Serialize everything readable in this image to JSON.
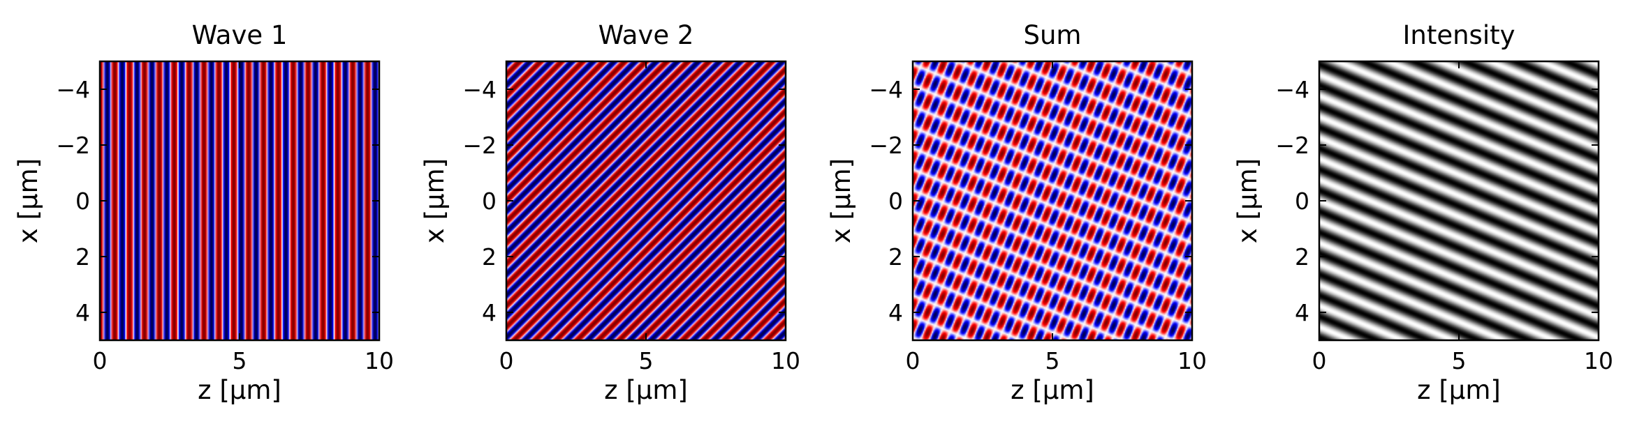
{
  "chart_data": [
    {
      "type": "heatmap",
      "title": "Wave 1",
      "xlabel": "z [μm]",
      "ylabel": "x [μm]",
      "xlim": [
        0,
        10
      ],
      "ylim": [
        -5,
        5
      ],
      "y_inverted": true,
      "xticks": [
        "0",
        "5",
        "10"
      ],
      "yticks": [
        "−4",
        "−2",
        "0",
        "2",
        "4"
      ],
      "colormap": "seismic",
      "pattern": {
        "kind": "wave",
        "kz": 11.8,
        "kx": 0,
        "stripe_period_um": 0.53
      }
    },
    {
      "type": "heatmap",
      "title": "Wave 2",
      "xlabel": "z [μm]",
      "ylabel": "x [μm]",
      "xlim": [
        0,
        10
      ],
      "ylim": [
        -5,
        5
      ],
      "y_inverted": true,
      "xticks": [
        "0",
        "5",
        "10"
      ],
      "yticks": [
        "−4",
        "−2",
        "0",
        "2",
        "4"
      ],
      "colormap": "seismic",
      "pattern": {
        "kind": "wave",
        "kz": 8.34,
        "kx": 8.34,
        "stripe_period_um": 0.53
      }
    },
    {
      "type": "heatmap",
      "title": "Sum",
      "xlabel": "z [μm]",
      "ylabel": "x [μm]",
      "xlim": [
        0,
        10
      ],
      "ylim": [
        -5,
        5
      ],
      "y_inverted": true,
      "xticks": [
        "0",
        "5",
        "10"
      ],
      "yticks": [
        "−4",
        "−2",
        "0",
        "2",
        "4"
      ],
      "colormap": "seismic",
      "pattern": {
        "kind": "sum",
        "waves": [
          [
            11.8,
            0
          ],
          [
            8.34,
            8.34
          ]
        ]
      }
    },
    {
      "type": "heatmap",
      "title": "Intensity",
      "xlabel": "z [μm]",
      "ylabel": "x [μm]",
      "xlim": [
        0,
        10
      ],
      "ylim": [
        -5,
        5
      ],
      "y_inverted": true,
      "xticks": [
        "0",
        "5",
        "10"
      ],
      "yticks": [
        "−4",
        "−2",
        "0",
        "2",
        "4"
      ],
      "colormap": "gray",
      "pattern": {
        "kind": "intensity",
        "waves": [
          [
            11.8,
            0
          ],
          [
            8.34,
            8.34
          ]
        ]
      }
    }
  ]
}
